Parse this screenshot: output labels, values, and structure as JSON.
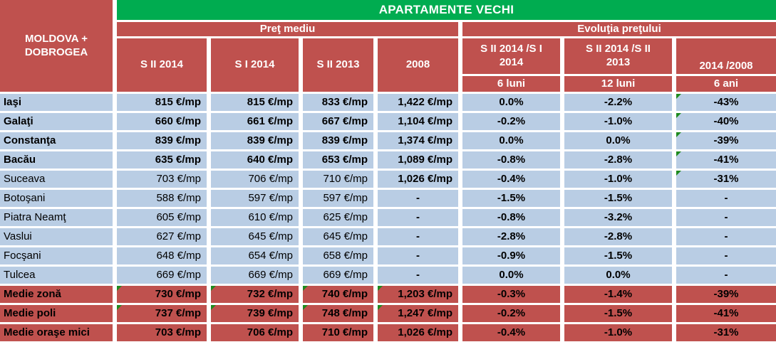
{
  "title": "APARTAMENTE VECHI",
  "region": "MOLDOVA + DOBROGEA",
  "groups": {
    "price": "Preţ mediu",
    "evolution": "Evoluţia preţului"
  },
  "columns": {
    "price": [
      "S II 2014",
      "S I 2014",
      "S II 2013",
      "2008"
    ],
    "evolution": [
      {
        "label": "S II 2014 /S I 2014",
        "period": "6 luni"
      },
      {
        "label": "S II 2014 /S II 2013",
        "period": "12 luni"
      },
      {
        "label": "2014 /2008",
        "period": "6 ani"
      }
    ]
  },
  "rows": [
    {
      "name": "Iaşi",
      "kind": "primary",
      "values": [
        "815 €/mp",
        "815 €/mp",
        "833 €/mp",
        "1,422 €/mp",
        "0.0%",
        "-2.2%",
        "-43%"
      ],
      "triangles": [
        6
      ]
    },
    {
      "name": "Galaţi",
      "kind": "primary",
      "values": [
        "660 €/mp",
        "661 €/mp",
        "667 €/mp",
        "1,104 €/mp",
        "-0.2%",
        "-1.0%",
        "-40%"
      ],
      "triangles": [
        6
      ]
    },
    {
      "name": "Constanţa",
      "kind": "primary",
      "values": [
        "839 €/mp",
        "839 €/mp",
        "839 €/mp",
        "1,374 €/mp",
        "0.0%",
        "0.0%",
        "-39%"
      ],
      "triangles": [
        6
      ]
    },
    {
      "name": "Bacău",
      "kind": "primary",
      "values": [
        "635 €/mp",
        "640 €/mp",
        "653 €/mp",
        "1,089 €/mp",
        "-0.8%",
        "-2.8%",
        "-41%"
      ],
      "triangles": [
        6
      ]
    },
    {
      "name": "Suceava",
      "kind": "secondary",
      "values": [
        "703 €/mp",
        "706 €/mp",
        "710 €/mp",
        "1,026 €/mp",
        "-0.4%",
        "-1.0%",
        "-31%"
      ],
      "triangles": [
        6
      ]
    },
    {
      "name": "Botoşani",
      "kind": "secondary",
      "values": [
        "588 €/mp",
        "597 €/mp",
        "597 €/mp",
        "-",
        "-1.5%",
        "-1.5%",
        "-"
      ],
      "triangles": []
    },
    {
      "name": "Piatra Neamţ",
      "kind": "secondary",
      "values": [
        "605 €/mp",
        "610 €/mp",
        "625 €/mp",
        "-",
        "-0.8%",
        "-3.2%",
        "-"
      ],
      "triangles": []
    },
    {
      "name": "Vaslui",
      "kind": "secondary",
      "values": [
        "627 €/mp",
        "645 €/mp",
        "645 €/mp",
        "-",
        "-2.8%",
        "-2.8%",
        "-"
      ],
      "triangles": []
    },
    {
      "name": "Focşani",
      "kind": "secondary",
      "values": [
        "648 €/mp",
        "654 €/mp",
        "658 €/mp",
        "-",
        "-0.9%",
        "-1.5%",
        "-"
      ],
      "triangles": []
    },
    {
      "name": "Tulcea",
      "kind": "secondary",
      "values": [
        "669 €/mp",
        "669 €/mp",
        "669 €/mp",
        "-",
        "0.0%",
        "0.0%",
        "-"
      ],
      "triangles": []
    },
    {
      "name": "Medie zonă",
      "kind": "summary",
      "values": [
        "730 €/mp",
        "732 €/mp",
        "740 €/mp",
        "1,203 €/mp",
        "-0.3%",
        "-1.4%",
        "-39%"
      ],
      "triangles": [
        0,
        1,
        2,
        3
      ]
    },
    {
      "name": "Medie poli",
      "kind": "summary",
      "values": [
        "737 €/mp",
        "739 €/mp",
        "748 €/mp",
        "1,247 €/mp",
        "-0.2%",
        "-1.5%",
        "-41%"
      ],
      "triangles": [
        0,
        1,
        2,
        3
      ]
    },
    {
      "name": "Medie oraşe mici",
      "kind": "summary",
      "values": [
        "703 €/mp",
        "706 €/mp",
        "710 €/mp",
        "1,026 €/mp",
        "-0.4%",
        "-1.0%",
        "-31%"
      ],
      "triangles": []
    }
  ],
  "colors": {
    "green": "#00AC50",
    "header-red": "#BF514E",
    "row-blue": "#B9CDE4",
    "triangle-green": "#1E8A1E"
  }
}
